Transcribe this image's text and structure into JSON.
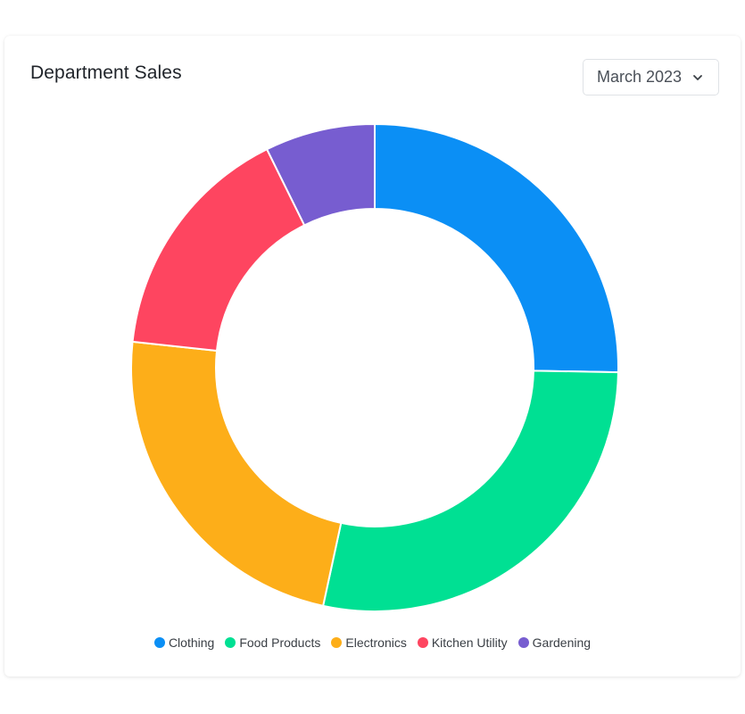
{
  "card": {
    "title": "Department Sales"
  },
  "month_select": {
    "value": "March 2023",
    "icon": "chevron-down-icon"
  },
  "chart_data": {
    "type": "pie",
    "variant": "donut",
    "title": "Department Sales",
    "categories": [
      "Clothing",
      "Food Products",
      "Electronics",
      "Kitchen Utility",
      "Gardening"
    ],
    "values": [
      25.3,
      28.1,
      23.3,
      16.0,
      7.3
    ],
    "colors": [
      "#0b8ff5",
      "#00e093",
      "#fdae19",
      "#fe4560",
      "#775dd0"
    ],
    "legend_position": "bottom"
  }
}
